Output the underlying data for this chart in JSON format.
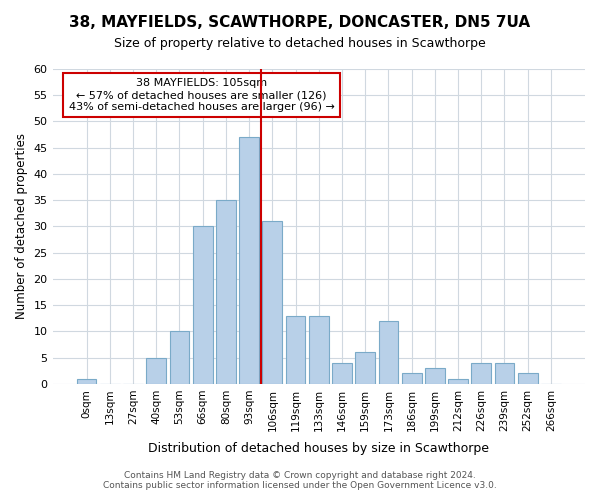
{
  "title1": "38, MAYFIELDS, SCAWTHORPE, DONCASTER, DN5 7UA",
  "title2": "Size of property relative to detached houses in Scawthorpe",
  "xlabel": "Distribution of detached houses by size in Scawthorpe",
  "ylabel": "Number of detached properties",
  "bar_labels": [
    "0sqm",
    "13sqm",
    "27sqm",
    "40sqm",
    "53sqm",
    "66sqm",
    "80sqm",
    "93sqm",
    "106sqm",
    "119sqm",
    "133sqm",
    "146sqm",
    "159sqm",
    "173sqm",
    "186sqm",
    "199sqm",
    "212sqm",
    "226sqm",
    "239sqm",
    "252sqm",
    "266sqm"
  ],
  "bar_values": [
    1,
    0,
    0,
    5,
    10,
    30,
    35,
    47,
    31,
    13,
    13,
    4,
    6,
    12,
    2,
    3,
    1,
    4,
    4,
    2,
    0
  ],
  "bar_color": "#b8d0e8",
  "bar_edge_color": "#7aaac8",
  "highlight_color": "#cc0000",
  "annotation_title": "38 MAYFIELDS: 105sqm",
  "annotation_line1": "← 57% of detached houses are smaller (126)",
  "annotation_line2": "43% of semi-detached houses are larger (96) →",
  "annotation_box_color": "#ffffff",
  "annotation_box_edge": "#cc0000",
  "ylim": [
    0,
    60
  ],
  "yticks": [
    0,
    5,
    10,
    15,
    20,
    25,
    30,
    35,
    40,
    45,
    50,
    55,
    60
  ],
  "footer1": "Contains HM Land Registry data © Crown copyright and database right 2024.",
  "footer2": "Contains public sector information licensed under the Open Government Licence v3.0.",
  "bg_color": "#ffffff",
  "grid_color": "#d0d8e0"
}
